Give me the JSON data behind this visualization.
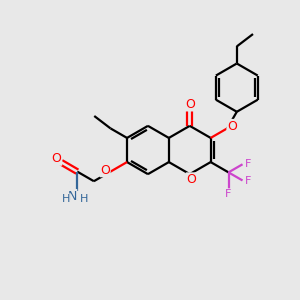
{
  "background_color": "#e8e8e8",
  "bond_color": "#000000",
  "oxygen_color": "#ff0000",
  "nitrogen_color": "#336699",
  "fluorine_color": "#cc44cc",
  "line_width": 1.6,
  "figsize": [
    3.0,
    3.0
  ],
  "dpi": 100,
  "xlim": [
    0,
    10
  ],
  "ylim": [
    0,
    10
  ]
}
